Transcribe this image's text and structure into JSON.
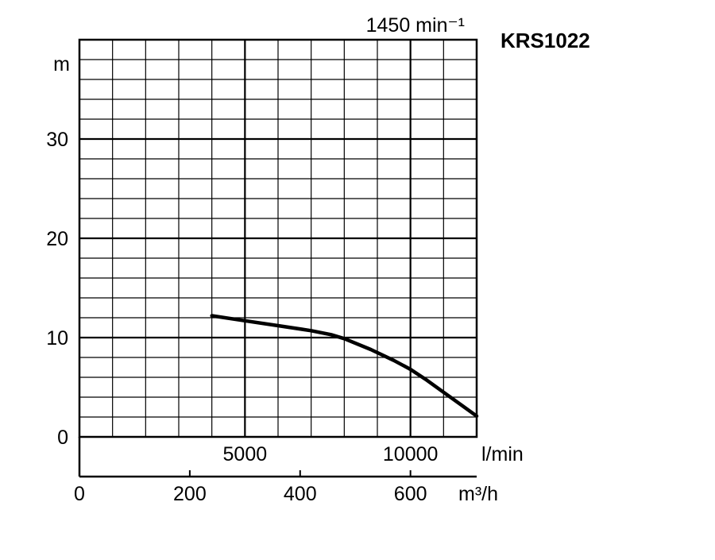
{
  "chart_data": {
    "type": "line",
    "title": "",
    "model": "KRS1022",
    "speed_label": "1450 min⁻¹",
    "y_axis": {
      "unit": "m",
      "range": [
        0,
        40
      ],
      "ticks": [
        0,
        10,
        20,
        30
      ],
      "minor_step": 2,
      "major_step": 10
    },
    "x_axis_lmin": {
      "unit": "l/min",
      "range": [
        0,
        12000
      ],
      "ticks": [
        5000,
        10000
      ],
      "grid_step": 1000,
      "major_step": 5000
    },
    "x_axis_m3h": {
      "unit": "m³/h",
      "range": [
        0,
        720
      ],
      "ticks": [
        0,
        200,
        400,
        600
      ]
    },
    "grid": true,
    "series": [
      {
        "x": [
          4000,
          5000,
          6000,
          7000,
          7600,
          8000,
          8800,
          9500,
          10000,
          10500,
          11000,
          11500,
          12000
        ],
        "y": [
          12.2,
          11.7,
          11.2,
          10.7,
          10.3,
          9.9,
          8.8,
          7.7,
          6.8,
          5.7,
          4.5,
          3.3,
          2.1
        ]
      }
    ]
  }
}
